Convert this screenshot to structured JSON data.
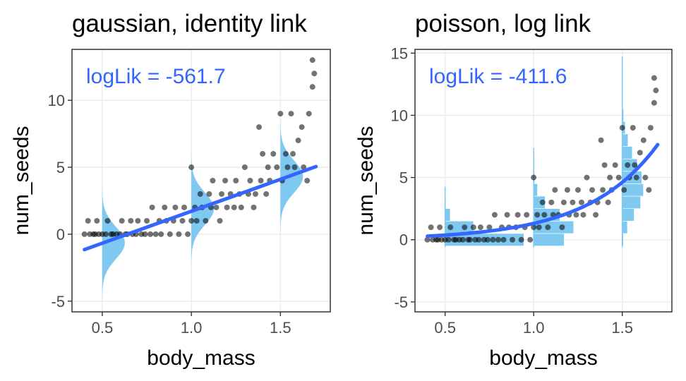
{
  "colors": {
    "points": "#000000",
    "fit_line": "#3366ff",
    "distribution": "#7fc8f0",
    "annotation": "#3366ff",
    "grid": "#ebebeb",
    "tick_label": "#4d4d4d"
  },
  "chart_data": [
    {
      "type": "scatter",
      "title": "gaussian, identity link",
      "xlabel": "body_mass",
      "ylabel": "num_seeds",
      "xlim": [
        0.33,
        1.78
      ],
      "ylim": [
        -5.8,
        13.8
      ],
      "x_ticks": [
        "0.5",
        "1.0",
        "1.5"
      ],
      "x_tick_values": [
        0.5,
        1.0,
        1.5
      ],
      "y_ticks": [
        "-5",
        "0",
        "5",
        "10"
      ],
      "y_tick_values": [
        -5,
        0,
        5,
        10
      ],
      "grid": true,
      "annotation": "logLik = -561.7",
      "fit_line": {
        "x": [
          0.4,
          1.7
        ],
        "y": [
          -1.15,
          5.05
        ]
      },
      "distributions": [
        {
          "x": 0.5,
          "mean": -0.65,
          "sd": 1.2
        },
        {
          "x": 1.0,
          "mean": 1.9,
          "sd": 1.2
        },
        {
          "x": 1.5,
          "mean": 4.3,
          "sd": 1.2
        }
      ],
      "points": [
        [
          0.4,
          0
        ],
        [
          0.42,
          1
        ],
        [
          0.43,
          0
        ],
        [
          0.45,
          0
        ],
        [
          0.46,
          0
        ],
        [
          0.47,
          1
        ],
        [
          0.48,
          0
        ],
        [
          0.5,
          0
        ],
        [
          0.52,
          0
        ],
        [
          0.53,
          1
        ],
        [
          0.55,
          0
        ],
        [
          0.56,
          0
        ],
        [
          0.58,
          0
        ],
        [
          0.6,
          0
        ],
        [
          0.61,
          1
        ],
        [
          0.63,
          0
        ],
        [
          0.64,
          0
        ],
        [
          0.66,
          1
        ],
        [
          0.67,
          0
        ],
        [
          0.69,
          0
        ],
        [
          0.7,
          1
        ],
        [
          0.72,
          0
        ],
        [
          0.74,
          0
        ],
        [
          0.75,
          1
        ],
        [
          0.77,
          0
        ],
        [
          0.78,
          2
        ],
        [
          0.8,
          0
        ],
        [
          0.82,
          1
        ],
        [
          0.83,
          0
        ],
        [
          0.85,
          2
        ],
        [
          0.86,
          1
        ],
        [
          0.88,
          0
        ],
        [
          0.9,
          1
        ],
        [
          0.91,
          2
        ],
        [
          0.93,
          0
        ],
        [
          0.95,
          1
        ],
        [
          0.96,
          2
        ],
        [
          0.98,
          0
        ],
        [
          1.0,
          5
        ],
        [
          1.0,
          1
        ],
        [
          1.02,
          2
        ],
        [
          1.03,
          1
        ],
        [
          1.05,
          3
        ],
        [
          1.06,
          2
        ],
        [
          1.08,
          1
        ],
        [
          1.1,
          3
        ],
        [
          1.11,
          2
        ],
        [
          1.12,
          4
        ],
        [
          1.14,
          2
        ],
        [
          1.16,
          1
        ],
        [
          1.17,
          3
        ],
        [
          1.19,
          4
        ],
        [
          1.2,
          2
        ],
        [
          1.22,
          3
        ],
        [
          1.24,
          2
        ],
        [
          1.25,
          4
        ],
        [
          1.27,
          3
        ],
        [
          1.28,
          2
        ],
        [
          1.3,
          5
        ],
        [
          1.32,
          3
        ],
        [
          1.33,
          4
        ],
        [
          1.35,
          2
        ],
        [
          1.36,
          3
        ],
        [
          1.38,
          8
        ],
        [
          1.39,
          4
        ],
        [
          1.4,
          6
        ],
        [
          1.42,
          3
        ],
        [
          1.43,
          5
        ],
        [
          1.44,
          4
        ],
        [
          1.46,
          6
        ],
        [
          1.48,
          5
        ],
        [
          1.5,
          9
        ],
        [
          1.51,
          4
        ],
        [
          1.53,
          6
        ],
        [
          1.54,
          5
        ],
        [
          1.56,
          9
        ],
        [
          1.57,
          6
        ],
        [
          1.58,
          5
        ],
        [
          1.6,
          7
        ],
        [
          1.62,
          8
        ],
        [
          1.63,
          5
        ],
        [
          1.65,
          4
        ],
        [
          1.66,
          9
        ],
        [
          1.68,
          13
        ],
        [
          1.69,
          12
        ],
        [
          1.68,
          11
        ]
      ]
    },
    {
      "type": "scatter",
      "title": "poisson, log link",
      "xlabel": "body_mass",
      "ylabel": "num_seeds",
      "xlim": [
        0.33,
        1.78
      ],
      "ylim": [
        -5.8,
        15.3
      ],
      "x_ticks": [
        "0.5",
        "1.0",
        "1.5"
      ],
      "x_tick_values": [
        0.5,
        1.0,
        1.5
      ],
      "y_ticks": [
        "-5",
        "0",
        "5",
        "10",
        "15"
      ],
      "y_tick_values": [
        -5,
        0,
        5,
        10,
        15
      ],
      "grid": true,
      "annotation": "logLik = -411.6",
      "fit_curve": {
        "x_range": [
          0.4,
          1.7
        ],
        "intercept": -2.25,
        "slope": 2.52
      },
      "distributions": [
        {
          "x": 0.5,
          "lambda": 0.36
        },
        {
          "x": 1.0,
          "lambda": 1.31
        },
        {
          "x": 1.5,
          "lambda": 4.62
        }
      ],
      "points": [
        [
          0.4,
          0
        ],
        [
          0.42,
          1
        ],
        [
          0.43,
          0
        ],
        [
          0.45,
          0
        ],
        [
          0.46,
          0
        ],
        [
          0.47,
          1
        ],
        [
          0.48,
          0
        ],
        [
          0.5,
          0
        ],
        [
          0.52,
          0
        ],
        [
          0.53,
          1
        ],
        [
          0.55,
          0
        ],
        [
          0.56,
          0
        ],
        [
          0.58,
          0
        ],
        [
          0.6,
          0
        ],
        [
          0.61,
          1
        ],
        [
          0.63,
          0
        ],
        [
          0.64,
          0
        ],
        [
          0.66,
          1
        ],
        [
          0.67,
          0
        ],
        [
          0.69,
          0
        ],
        [
          0.7,
          1
        ],
        [
          0.72,
          0
        ],
        [
          0.74,
          0
        ],
        [
          0.75,
          1
        ],
        [
          0.77,
          0
        ],
        [
          0.78,
          2
        ],
        [
          0.8,
          0
        ],
        [
          0.82,
          1
        ],
        [
          0.83,
          0
        ],
        [
          0.85,
          2
        ],
        [
          0.86,
          1
        ],
        [
          0.88,
          0
        ],
        [
          0.9,
          1
        ],
        [
          0.91,
          2
        ],
        [
          0.93,
          0
        ],
        [
          0.95,
          1
        ],
        [
          0.96,
          2
        ],
        [
          0.98,
          0
        ],
        [
          1.0,
          5
        ],
        [
          1.0,
          1
        ],
        [
          1.02,
          2
        ],
        [
          1.03,
          1
        ],
        [
          1.05,
          3
        ],
        [
          1.06,
          2
        ],
        [
          1.08,
          1
        ],
        [
          1.1,
          3
        ],
        [
          1.11,
          2
        ],
        [
          1.12,
          4
        ],
        [
          1.14,
          2
        ],
        [
          1.16,
          1
        ],
        [
          1.17,
          3
        ],
        [
          1.19,
          4
        ],
        [
          1.2,
          2
        ],
        [
          1.22,
          3
        ],
        [
          1.24,
          2
        ],
        [
          1.25,
          4
        ],
        [
          1.27,
          3
        ],
        [
          1.28,
          2
        ],
        [
          1.3,
          5
        ],
        [
          1.32,
          3
        ],
        [
          1.33,
          4
        ],
        [
          1.35,
          2
        ],
        [
          1.36,
          3
        ],
        [
          1.38,
          8
        ],
        [
          1.39,
          4
        ],
        [
          1.4,
          6
        ],
        [
          1.42,
          3
        ],
        [
          1.43,
          5
        ],
        [
          1.44,
          4
        ],
        [
          1.46,
          6
        ],
        [
          1.48,
          5
        ],
        [
          1.5,
          9
        ],
        [
          1.51,
          4
        ],
        [
          1.53,
          6
        ],
        [
          1.54,
          5
        ],
        [
          1.56,
          9
        ],
        [
          1.57,
          6
        ],
        [
          1.58,
          5
        ],
        [
          1.6,
          7
        ],
        [
          1.62,
          8
        ],
        [
          1.63,
          5
        ],
        [
          1.65,
          4
        ],
        [
          1.66,
          9
        ],
        [
          1.68,
          13
        ],
        [
          1.69,
          12
        ],
        [
          1.68,
          11
        ]
      ]
    }
  ]
}
